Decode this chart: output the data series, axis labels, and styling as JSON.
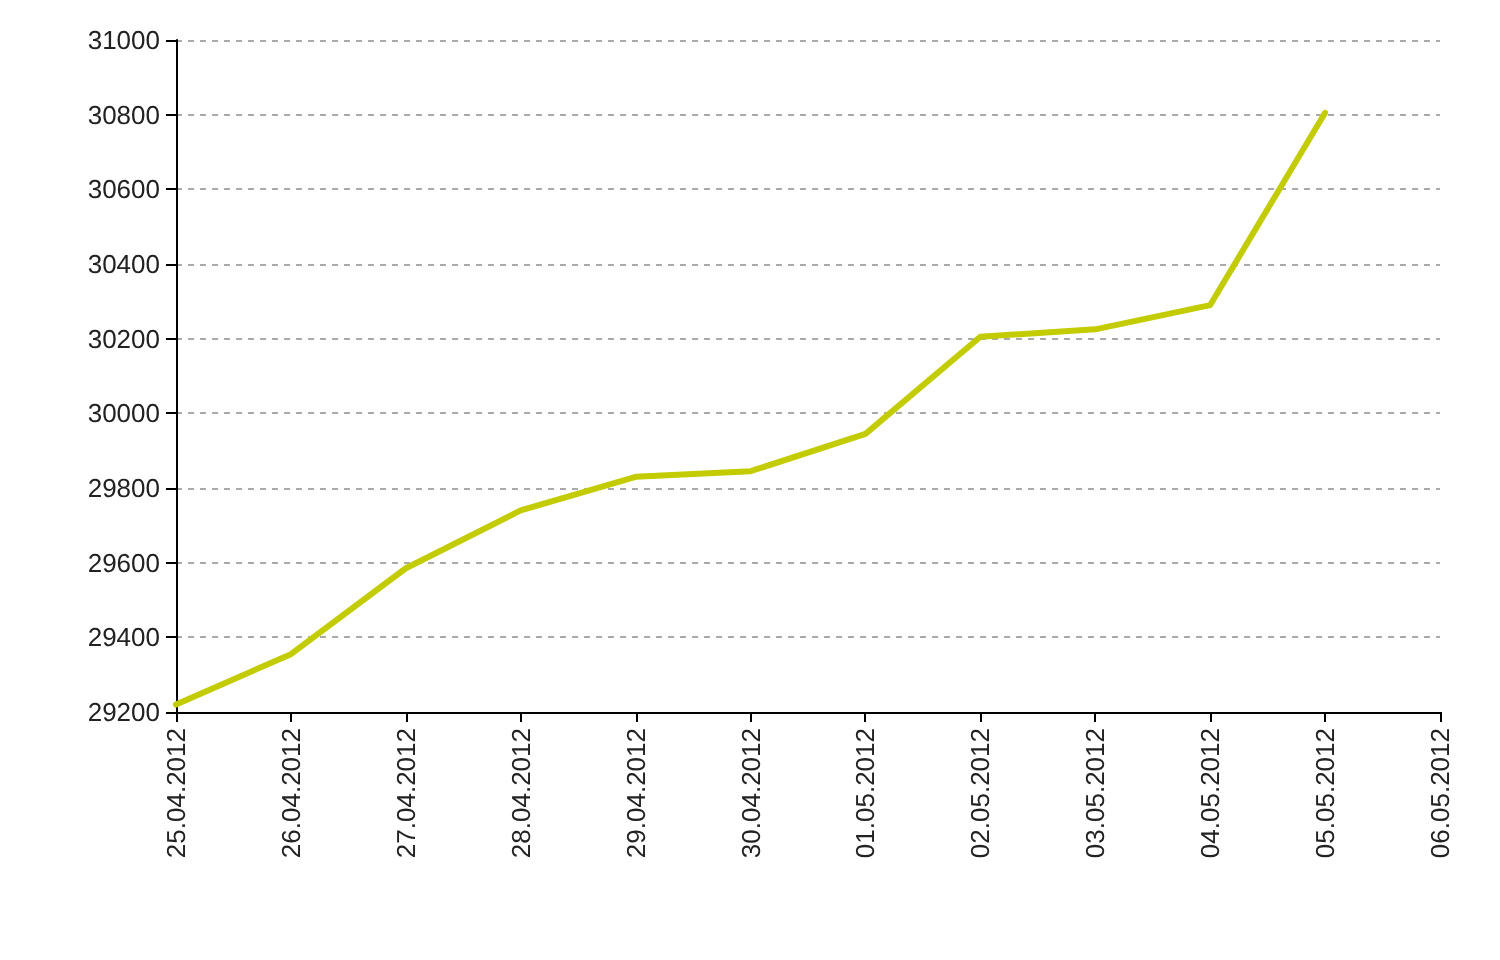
{
  "chart_data": {
    "type": "line",
    "x": [
      "2012-04-25",
      "2012-04-26",
      "2012-04-27",
      "2012-04-28",
      "2012-04-29",
      "2012-04-30",
      "2012-05-01",
      "2012-05-02",
      "2012-05-03",
      "2012-05-04",
      "2012-05-05"
    ],
    "series": [
      {
        "color": "#c3cc00",
        "values": [
          29220,
          29355,
          29585,
          29740,
          29830,
          29845,
          29945,
          30205,
          30225,
          30290,
          30805
        ]
      }
    ],
    "xlim": [
      "2012-04-25",
      "2012-05-06"
    ],
    "xticks": [
      {
        "value": "2012-04-25",
        "label": "25.04.2012"
      },
      {
        "value": "2012-04-26",
        "label": "26.04.2012"
      },
      {
        "value": "2012-04-27",
        "label": "27.04.2012"
      },
      {
        "value": "2012-04-28",
        "label": "28.04.2012"
      },
      {
        "value": "2012-04-29",
        "label": "29.04.2012"
      },
      {
        "value": "2012-04-30",
        "label": "30.04.2012"
      },
      {
        "value": "2012-05-01",
        "label": "01.05.2012"
      },
      {
        "value": "2012-05-02",
        "label": "02.05.2012"
      },
      {
        "value": "2012-05-03",
        "label": "03.05.2012"
      },
      {
        "value": "2012-05-04",
        "label": "04.05.2012"
      },
      {
        "value": "2012-05-05",
        "label": "05.05.2012"
      },
      {
        "value": "2012-05-06",
        "label": "06.05.2012"
      }
    ],
    "ylim": [
      29200,
      31000
    ],
    "yticks": [
      29200,
      29400,
      29600,
      29800,
      30000,
      30200,
      30400,
      30600,
      30800,
      31000
    ],
    "grid": "y",
    "legend": false,
    "marker": "none",
    "line_style": "solid"
  }
}
